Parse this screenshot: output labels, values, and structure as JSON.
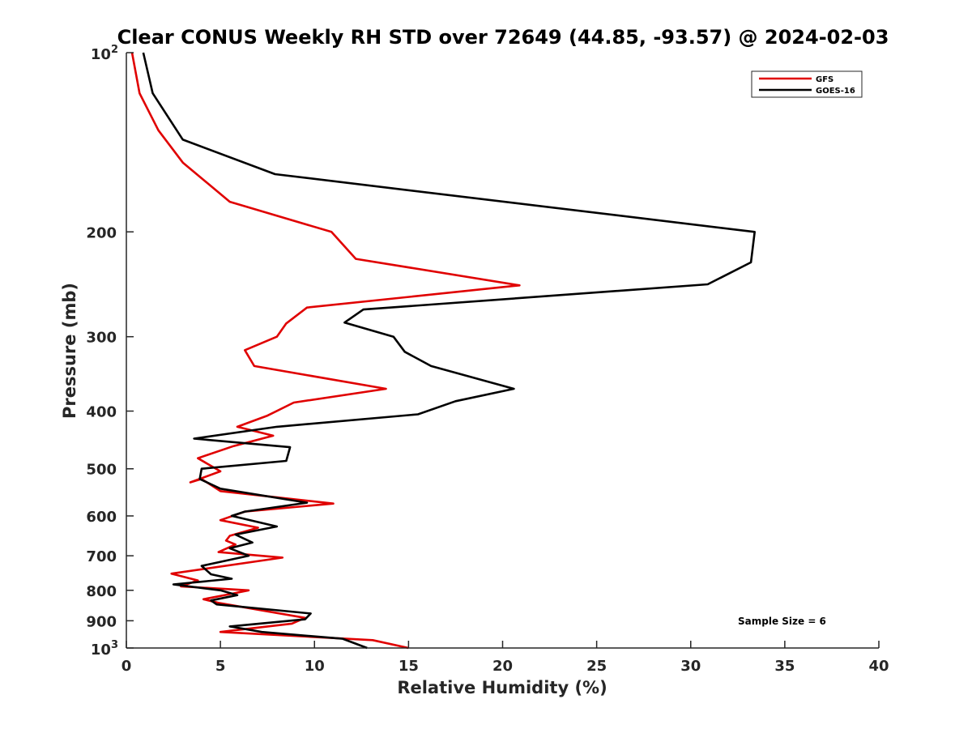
{
  "chart_data": {
    "type": "line",
    "title": "Clear CONUS Weekly RH STD over 72649 (44.85, -93.57) @ 2024-02-03",
    "xlabel": "Relative Humidity (%)",
    "ylabel": "Pressure (mb)",
    "xlim": [
      0,
      40
    ],
    "ylim": [
      1000,
      100
    ],
    "yscale": "log",
    "y_reversed": true,
    "grid": false,
    "legend_position": "top-right",
    "x_ticks": [
      {
        "value": 0,
        "label": "0"
      },
      {
        "value": 5,
        "label": "5"
      },
      {
        "value": 10,
        "label": "10"
      },
      {
        "value": 15,
        "label": "15"
      },
      {
        "value": 20,
        "label": "20"
      },
      {
        "value": 25,
        "label": "25"
      },
      {
        "value": 30,
        "label": "30"
      },
      {
        "value": 35,
        "label": "35"
      },
      {
        "value": 40,
        "label": "40"
      }
    ],
    "y_ticks": [
      {
        "value": 100,
        "base": "10",
        "exp": "2"
      },
      {
        "value": 200,
        "label": "200"
      },
      {
        "value": 300,
        "label": "300"
      },
      {
        "value": 400,
        "label": "400"
      },
      {
        "value": 500,
        "label": "500"
      },
      {
        "value": 600,
        "label": "600"
      },
      {
        "value": 700,
        "label": "700"
      },
      {
        "value": 800,
        "label": "800"
      },
      {
        "value": 900,
        "label": "900"
      },
      {
        "value": 1000,
        "base": "10",
        "exp": "3"
      }
    ],
    "annotation": "Sample Size = 6",
    "series": [
      {
        "name": "GFS",
        "color": "#e00000",
        "points": [
          [
            0.3,
            100
          ],
          [
            0.7,
            117
          ],
          [
            1.7,
            135
          ],
          [
            3.0,
            153
          ],
          [
            5.5,
            178
          ],
          [
            10.9,
            200
          ],
          [
            12.2,
            222
          ],
          [
            20.9,
            246
          ],
          [
            9.6,
            268
          ],
          [
            8.5,
            285
          ],
          [
            8.0,
            300
          ],
          [
            6.3,
            316
          ],
          [
            6.8,
            336
          ],
          [
            13.8,
            367
          ],
          [
            8.9,
            387
          ],
          [
            7.5,
            407
          ],
          [
            5.9,
            425
          ],
          [
            7.8,
            440
          ],
          [
            5.7,
            458
          ],
          [
            3.8,
            480
          ],
          [
            5.0,
            505
          ],
          [
            3.4,
            527
          ],
          [
            4.0,
            520
          ],
          [
            5.0,
            545
          ],
          [
            11.0,
            572
          ],
          [
            6.3,
            590
          ],
          [
            5.0,
            610
          ],
          [
            7.0,
            628
          ],
          [
            5.5,
            648
          ],
          [
            5.3,
            660
          ],
          [
            5.8,
            670
          ],
          [
            4.9,
            690
          ],
          [
            8.3,
            705
          ],
          [
            2.4,
            750
          ],
          [
            3.8,
            770
          ],
          [
            2.9,
            788
          ],
          [
            6.5,
            800
          ],
          [
            5.5,
            812
          ],
          [
            4.1,
            828
          ],
          [
            4.9,
            840
          ],
          [
            9.5,
            890
          ],
          [
            8.8,
            910
          ],
          [
            5.0,
            940
          ],
          [
            13.1,
            970
          ],
          [
            15.0,
            1000
          ]
        ]
      },
      {
        "name": "GOES-16",
        "color": "#000000",
        "points": [
          [
            0.9,
            100
          ],
          [
            1.4,
            117
          ],
          [
            3.0,
            140
          ],
          [
            7.9,
            160
          ],
          [
            33.4,
            200
          ],
          [
            33.2,
            225
          ],
          [
            30.9,
            245
          ],
          [
            12.6,
            270
          ],
          [
            11.6,
            284
          ],
          [
            14.2,
            300
          ],
          [
            14.8,
            318
          ],
          [
            16.2,
            336
          ],
          [
            20.6,
            367
          ],
          [
            17.5,
            385
          ],
          [
            15.5,
            405
          ],
          [
            8.0,
            425
          ],
          [
            3.6,
            445
          ],
          [
            8.7,
            460
          ],
          [
            8.5,
            485
          ],
          [
            4.0,
            500
          ],
          [
            3.9,
            520
          ],
          [
            5.0,
            540
          ],
          [
            9.6,
            570
          ],
          [
            6.3,
            590
          ],
          [
            5.6,
            600
          ],
          [
            8.0,
            625
          ],
          [
            5.8,
            645
          ],
          [
            6.7,
            665
          ],
          [
            5.5,
            680
          ],
          [
            6.5,
            700
          ],
          [
            4.0,
            728
          ],
          [
            4.5,
            752
          ],
          [
            5.6,
            765
          ],
          [
            2.5,
            782
          ],
          [
            5.0,
            800
          ],
          [
            5.9,
            815
          ],
          [
            4.5,
            832
          ],
          [
            4.8,
            845
          ],
          [
            9.8,
            875
          ],
          [
            9.5,
            895
          ],
          [
            5.5,
            920
          ],
          [
            7.2,
            940
          ],
          [
            11.5,
            965
          ],
          [
            12.8,
            1000
          ]
        ]
      }
    ]
  }
}
